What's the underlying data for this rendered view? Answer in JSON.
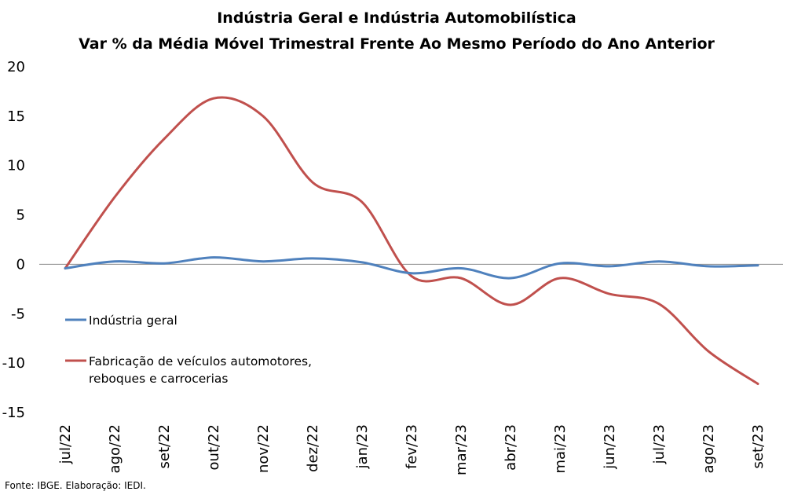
{
  "chart_data": {
    "type": "line",
    "title": "Indústria Geral e Indústria Automobilística",
    "subtitle": "Var % da Média Móvel Trimestral Frente Ao Mesmo Período do Ano Anterior",
    "xlabel": "",
    "ylabel": "",
    "ylim": [
      -15,
      20
    ],
    "yticks": [
      "20",
      "15",
      "10",
      "5",
      "0",
      "-5",
      "-10",
      "-15"
    ],
    "ytick_values": [
      20,
      15,
      10,
      5,
      0,
      -5,
      -10,
      -15
    ],
    "categories": [
      "jul/22",
      "ago/22",
      "set/22",
      "out/22",
      "nov/22",
      "dez/22",
      "jan/23",
      "fev/23",
      "mar/23",
      "abr/23",
      "mai/23",
      "jun/23",
      "jul/23",
      "ago/23",
      "set/23"
    ],
    "grid": false,
    "legend_position": "left",
    "series": [
      {
        "name": "Indústria geral",
        "color": "#4F81BD",
        "values": [
          -0.4,
          0.3,
          0.1,
          0.7,
          0.3,
          0.6,
          0.2,
          -0.9,
          -0.4,
          -1.4,
          0.1,
          -0.2,
          0.3,
          -0.2,
          -0.1
        ]
      },
      {
        "name": "Fabricação de veículos automotores, reboques e carrocerias",
        "legend_lines": [
          "Fabricação de veículos automotores,",
          "reboques e carrocerias"
        ],
        "color": "#C0504D",
        "values": [
          -0.4,
          6.8,
          12.7,
          16.8,
          15.0,
          8.3,
          6.3,
          -1.2,
          -1.4,
          -4.1,
          -1.4,
          -3.0,
          -4.0,
          -8.8,
          -12.1
        ]
      }
    ]
  },
  "source": "Fonte: IBGE. Elaboração: IEDI."
}
